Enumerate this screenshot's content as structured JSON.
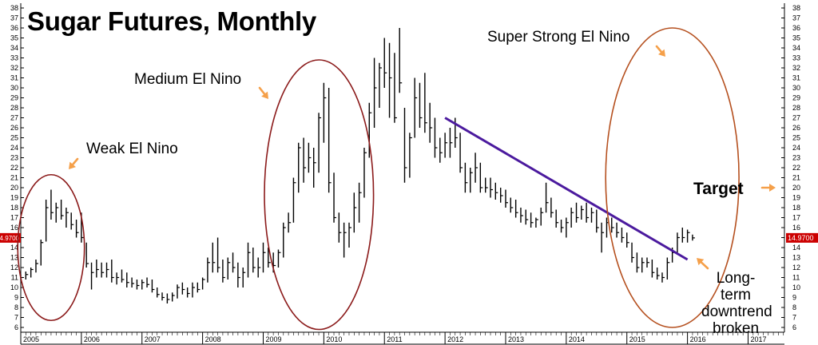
{
  "title": "Sugar Futures, Monthly",
  "annotations": {
    "weak": "Weak El Nino",
    "medium": "Medium El Nino",
    "super": "Super Strong El Nino",
    "target": "Target",
    "downtrend_line1": "Long-term",
    "downtrend_line2": "downtrend",
    "downtrend_line3": "broken"
  },
  "colors": {
    "bars": "#000000",
    "ellipse_weak_medium": "#8b1a1a",
    "ellipse_super": "#b5501f",
    "trendline": "#4b1a9e",
    "arrow": "#f5a04a",
    "last_price_tag": "#cc0000"
  },
  "chart_data": {
    "type": "ohlc",
    "title": "Sugar Futures, Monthly",
    "xlabel": "",
    "ylabel": "",
    "ylim": [
      6,
      38
    ],
    "y_ticks": [
      6,
      7,
      8,
      9,
      10,
      11,
      12,
      13,
      14,
      15,
      16,
      17,
      18,
      19,
      20,
      21,
      22,
      23,
      24,
      25,
      26,
      27,
      28,
      29,
      30,
      31,
      32,
      33,
      34,
      35,
      36,
      37,
      38
    ],
    "x_ticks": [
      "2005",
      "2006",
      "2007",
      "2008",
      "2009",
      "2010",
      "2011",
      "2012",
      "2013",
      "2014",
      "2015",
      "2016",
      "2017"
    ],
    "x_range": [
      2005.0,
      2017.6
    ],
    "last_price_label": "14.9700",
    "last_price": 14.97,
    "grid": false,
    "series": [
      {
        "t": 2005.0,
        "h": 11.3,
        "l": 10.7,
        "c": 11.0
      },
      {
        "t": 2005.083,
        "h": 11.6,
        "l": 10.8,
        "c": 11.3
      },
      {
        "t": 2005.167,
        "h": 12.0,
        "l": 11.0,
        "c": 11.8
      },
      {
        "t": 2005.25,
        "h": 12.8,
        "l": 11.5,
        "c": 12.4
      },
      {
        "t": 2005.333,
        "h": 14.8,
        "l": 12.2,
        "c": 14.5
      },
      {
        "t": 2005.417,
        "h": 18.8,
        "l": 14.6,
        "c": 18.0
      },
      {
        "t": 2005.5,
        "h": 19.8,
        "l": 16.8,
        "c": 17.5
      },
      {
        "t": 2005.583,
        "h": 18.5,
        "l": 16.5,
        "c": 18.0
      },
      {
        "t": 2005.667,
        "h": 18.8,
        "l": 16.8,
        "c": 17.2
      },
      {
        "t": 2005.75,
        "h": 18.0,
        "l": 16.0,
        "c": 17.5
      },
      {
        "t": 2005.833,
        "h": 17.5,
        "l": 15.8,
        "c": 16.3
      },
      {
        "t": 2005.917,
        "h": 16.8,
        "l": 15.0,
        "c": 15.5
      },
      {
        "t": 2006.0,
        "h": 17.5,
        "l": 14.5,
        "c": 15.0
      },
      {
        "t": 2006.083,
        "h": 14.5,
        "l": 12.0,
        "c": 12.4
      },
      {
        "t": 2006.167,
        "h": 12.5,
        "l": 9.8,
        "c": 11.5
      },
      {
        "t": 2006.25,
        "h": 12.8,
        "l": 11.0,
        "c": 11.8
      },
      {
        "t": 2006.333,
        "h": 12.5,
        "l": 11.0,
        "c": 11.5
      },
      {
        "t": 2006.417,
        "h": 12.5,
        "l": 11.0,
        "c": 11.8
      },
      {
        "t": 2006.5,
        "h": 12.8,
        "l": 10.5,
        "c": 11.0
      },
      {
        "t": 2006.583,
        "h": 11.5,
        "l": 10.3,
        "c": 11.0
      },
      {
        "t": 2006.667,
        "h": 11.8,
        "l": 10.5,
        "c": 10.8
      },
      {
        "t": 2006.75,
        "h": 11.5,
        "l": 10.0,
        "c": 10.5
      },
      {
        "t": 2006.833,
        "h": 11.0,
        "l": 10.0,
        "c": 10.4
      },
      {
        "t": 2006.917,
        "h": 10.8,
        "l": 9.8,
        "c": 10.2
      },
      {
        "t": 2007.0,
        "h": 10.8,
        "l": 9.8,
        "c": 10.5
      },
      {
        "t": 2007.083,
        "h": 11.0,
        "l": 10.0,
        "c": 10.3
      },
      {
        "t": 2007.167,
        "h": 10.8,
        "l": 9.5,
        "c": 9.8
      },
      {
        "t": 2007.25,
        "h": 10.0,
        "l": 9.0,
        "c": 9.3
      },
      {
        "t": 2007.333,
        "h": 9.5,
        "l": 8.7,
        "c": 9.0
      },
      {
        "t": 2007.417,
        "h": 9.4,
        "l": 8.4,
        "c": 8.8
      },
      {
        "t": 2007.5,
        "h": 9.5,
        "l": 8.6,
        "c": 9.2
      },
      {
        "t": 2007.583,
        "h": 10.3,
        "l": 8.9,
        "c": 10.0
      },
      {
        "t": 2007.667,
        "h": 10.5,
        "l": 9.3,
        "c": 9.8
      },
      {
        "t": 2007.75,
        "h": 10.0,
        "l": 9.0,
        "c": 9.4
      },
      {
        "t": 2007.833,
        "h": 10.5,
        "l": 9.0,
        "c": 10.0
      },
      {
        "t": 2007.917,
        "h": 10.5,
        "l": 9.5,
        "c": 9.8
      },
      {
        "t": 2008.0,
        "h": 11.0,
        "l": 9.8,
        "c": 10.8
      },
      {
        "t": 2008.083,
        "h": 13.0,
        "l": 10.5,
        "c": 12.5
      },
      {
        "t": 2008.167,
        "h": 14.5,
        "l": 11.5,
        "c": 12.5
      },
      {
        "t": 2008.25,
        "h": 15.0,
        "l": 11.5,
        "c": 12.0
      },
      {
        "t": 2008.333,
        "h": 12.8,
        "l": 10.5,
        "c": 11.0
      },
      {
        "t": 2008.417,
        "h": 13.0,
        "l": 10.8,
        "c": 12.5
      },
      {
        "t": 2008.5,
        "h": 13.5,
        "l": 11.5,
        "c": 12.0
      },
      {
        "t": 2008.583,
        "h": 12.5,
        "l": 10.0,
        "c": 11.0
      },
      {
        "t": 2008.667,
        "h": 12.0,
        "l": 10.0,
        "c": 11.5
      },
      {
        "t": 2008.75,
        "h": 14.5,
        "l": 11.0,
        "c": 13.5
      },
      {
        "t": 2008.833,
        "h": 14.0,
        "l": 11.5,
        "c": 12.0
      },
      {
        "t": 2008.917,
        "h": 13.0,
        "l": 11.0,
        "c": 12.0
      },
      {
        "t": 2009.0,
        "h": 14.5,
        "l": 11.5,
        "c": 13.5
      },
      {
        "t": 2009.083,
        "h": 14.0,
        "l": 12.0,
        "c": 12.5
      },
      {
        "t": 2009.167,
        "h": 13.5,
        "l": 11.5,
        "c": 12.2
      },
      {
        "t": 2009.25,
        "h": 13.8,
        "l": 12.0,
        "c": 13.5
      },
      {
        "t": 2009.333,
        "h": 16.5,
        "l": 13.0,
        "c": 16.0
      },
      {
        "t": 2009.417,
        "h": 17.5,
        "l": 15.5,
        "c": 16.5
      },
      {
        "t": 2009.5,
        "h": 21.0,
        "l": 16.5,
        "c": 20.5
      },
      {
        "t": 2009.583,
        "h": 24.5,
        "l": 19.5,
        "c": 24.0
      },
      {
        "t": 2009.667,
        "h": 25.0,
        "l": 20.5,
        "c": 22.0
      },
      {
        "t": 2009.75,
        "h": 24.5,
        "l": 21.5,
        "c": 23.0
      },
      {
        "t": 2009.833,
        "h": 24.0,
        "l": 20.0,
        "c": 22.5
      },
      {
        "t": 2009.917,
        "h": 27.5,
        "l": 21.5,
        "c": 27.0
      },
      {
        "t": 2010.0,
        "h": 30.5,
        "l": 24.5,
        "c": 29.0
      },
      {
        "t": 2010.083,
        "h": 30.0,
        "l": 19.5,
        "c": 20.5
      },
      {
        "t": 2010.167,
        "h": 21.5,
        "l": 16.5,
        "c": 17.0
      },
      {
        "t": 2010.25,
        "h": 17.5,
        "l": 14.5,
        "c": 15.5
      },
      {
        "t": 2010.333,
        "h": 16.5,
        "l": 13.0,
        "c": 15.5
      },
      {
        "t": 2010.417,
        "h": 16.5,
        "l": 14.0,
        "c": 16.0
      },
      {
        "t": 2010.5,
        "h": 19.5,
        "l": 15.5,
        "c": 18.0
      },
      {
        "t": 2010.583,
        "h": 20.5,
        "l": 16.5,
        "c": 19.5
      },
      {
        "t": 2010.667,
        "h": 24.0,
        "l": 19.0,
        "c": 23.5
      },
      {
        "t": 2010.75,
        "h": 28.5,
        "l": 23.0,
        "c": 27.5
      },
      {
        "t": 2010.833,
        "h": 33.0,
        "l": 26.0,
        "c": 30.0
      },
      {
        "t": 2010.917,
        "h": 32.5,
        "l": 28.0,
        "c": 32.0
      },
      {
        "t": 2011.0,
        "h": 35.0,
        "l": 30.0,
        "c": 31.5
      },
      {
        "t": 2011.083,
        "h": 34.5,
        "l": 27.0,
        "c": 31.0
      },
      {
        "t": 2011.167,
        "h": 33.5,
        "l": 26.5,
        "c": 27.0
      },
      {
        "t": 2011.25,
        "h": 36.0,
        "l": 29.5,
        "c": 30.5
      },
      {
        "t": 2011.333,
        "h": 28.0,
        "l": 20.5,
        "c": 22.0
      },
      {
        "t": 2011.417,
        "h": 25.5,
        "l": 21.0,
        "c": 25.0
      },
      {
        "t": 2011.5,
        "h": 31.0,
        "l": 25.0,
        "c": 29.0
      },
      {
        "t": 2011.583,
        "h": 30.5,
        "l": 26.0,
        "c": 27.0
      },
      {
        "t": 2011.667,
        "h": 31.5,
        "l": 25.5,
        "c": 26.5
      },
      {
        "t": 2011.75,
        "h": 28.5,
        "l": 24.5,
        "c": 26.0
      },
      {
        "t": 2011.833,
        "h": 27.0,
        "l": 23.0,
        "c": 24.0
      },
      {
        "t": 2011.917,
        "h": 25.0,
        "l": 22.5,
        "c": 23.5
      },
      {
        "t": 2012.0,
        "h": 25.5,
        "l": 23.0,
        "c": 24.5
      },
      {
        "t": 2012.083,
        "h": 26.0,
        "l": 23.0,
        "c": 24.5
      },
      {
        "t": 2012.167,
        "h": 27.0,
        "l": 24.0,
        "c": 25.0
      },
      {
        "t": 2012.25,
        "h": 25.5,
        "l": 21.5,
        "c": 22.0
      },
      {
        "t": 2012.333,
        "h": 22.5,
        "l": 19.5,
        "c": 20.5
      },
      {
        "t": 2012.417,
        "h": 22.0,
        "l": 19.5,
        "c": 21.5
      },
      {
        "t": 2012.5,
        "h": 23.5,
        "l": 20.5,
        "c": 22.0
      },
      {
        "t": 2012.583,
        "h": 22.5,
        "l": 19.5,
        "c": 20.0
      },
      {
        "t": 2012.667,
        "h": 21.0,
        "l": 19.5,
        "c": 20.0
      },
      {
        "t": 2012.75,
        "h": 21.0,
        "l": 19.0,
        "c": 19.8
      },
      {
        "t": 2012.833,
        "h": 20.5,
        "l": 18.8,
        "c": 19.5
      },
      {
        "t": 2012.917,
        "h": 20.0,
        "l": 18.5,
        "c": 19.2
      },
      {
        "t": 2013.0,
        "h": 19.8,
        "l": 18.0,
        "c": 18.5
      },
      {
        "t": 2013.083,
        "h": 19.0,
        "l": 17.5,
        "c": 18.0
      },
      {
        "t": 2013.167,
        "h": 18.8,
        "l": 17.0,
        "c": 17.5
      },
      {
        "t": 2013.25,
        "h": 18.0,
        "l": 16.5,
        "c": 17.2
      },
      {
        "t": 2013.333,
        "h": 17.8,
        "l": 16.3,
        "c": 16.8
      },
      {
        "t": 2013.417,
        "h": 17.5,
        "l": 16.0,
        "c": 16.5
      },
      {
        "t": 2013.5,
        "h": 17.0,
        "l": 16.0,
        "c": 16.8
      },
      {
        "t": 2013.583,
        "h": 18.0,
        "l": 16.2,
        "c": 17.5
      },
      {
        "t": 2013.667,
        "h": 20.5,
        "l": 17.5,
        "c": 18.5
      },
      {
        "t": 2013.75,
        "h": 19.0,
        "l": 17.0,
        "c": 17.5
      },
      {
        "t": 2013.833,
        "h": 17.8,
        "l": 16.0,
        "c": 16.5
      },
      {
        "t": 2013.917,
        "h": 16.8,
        "l": 15.5,
        "c": 16.0
      },
      {
        "t": 2014.0,
        "h": 17.0,
        "l": 15.0,
        "c": 16.5
      },
      {
        "t": 2014.083,
        "h": 18.0,
        "l": 16.0,
        "c": 17.5
      },
      {
        "t": 2014.167,
        "h": 18.5,
        "l": 16.5,
        "c": 17.0
      },
      {
        "t": 2014.25,
        "h": 18.2,
        "l": 16.8,
        "c": 17.8
      },
      {
        "t": 2014.333,
        "h": 18.5,
        "l": 16.5,
        "c": 17.0
      },
      {
        "t": 2014.417,
        "h": 18.0,
        "l": 16.5,
        "c": 17.5
      },
      {
        "t": 2014.5,
        "h": 17.8,
        "l": 15.5,
        "c": 16.0
      },
      {
        "t": 2014.583,
        "h": 16.5,
        "l": 13.5,
        "c": 15.5
      },
      {
        "t": 2014.667,
        "h": 17.0,
        "l": 15.0,
        "c": 16.5
      },
      {
        "t": 2014.75,
        "h": 17.0,
        "l": 15.5,
        "c": 16.0
      },
      {
        "t": 2014.833,
        "h": 16.5,
        "l": 15.0,
        "c": 15.5
      },
      {
        "t": 2014.917,
        "h": 16.0,
        "l": 14.5,
        "c": 15.0
      },
      {
        "t": 2015.0,
        "h": 15.5,
        "l": 14.0,
        "c": 14.5
      },
      {
        "t": 2015.083,
        "h": 14.5,
        "l": 12.5,
        "c": 13.0
      },
      {
        "t": 2015.167,
        "h": 13.5,
        "l": 11.5,
        "c": 12.0
      },
      {
        "t": 2015.25,
        "h": 13.0,
        "l": 11.5,
        "c": 12.5
      },
      {
        "t": 2015.333,
        "h": 13.0,
        "l": 12.0,
        "c": 12.5
      },
      {
        "t": 2015.417,
        "h": 12.8,
        "l": 11.0,
        "c": 11.5
      },
      {
        "t": 2015.5,
        "h": 12.0,
        "l": 10.8,
        "c": 11.2
      },
      {
        "t": 2015.583,
        "h": 11.5,
        "l": 10.5,
        "c": 11.0
      },
      {
        "t": 2015.667,
        "h": 13.0,
        "l": 10.8,
        "c": 12.5
      },
      {
        "t": 2015.75,
        "h": 14.0,
        "l": 12.5,
        "c": 13.5
      },
      {
        "t": 2015.833,
        "h": 15.5,
        "l": 13.5,
        "c": 15.0
      },
      {
        "t": 2015.917,
        "h": 16.0,
        "l": 14.5,
        "c": 15.0
      },
      {
        "t": 2016.0,
        "h": 15.8,
        "l": 14.5,
        "c": 15.5
      },
      {
        "t": 2016.083,
        "h": 15.3,
        "l": 14.7,
        "c": 14.97
      }
    ],
    "trendline": {
      "start": [
        2012.0,
        27.0
      ],
      "end": [
        2016.0,
        12.8
      ]
    },
    "ellipses": [
      {
        "name": "Weak El Nino",
        "cx": 2005.5,
        "cy": 14.0,
        "rx": 0.55,
        "ry": 7.3
      },
      {
        "name": "Medium El Nino",
        "cx": 2009.92,
        "cy": 19.3,
        "rx": 0.9,
        "ry": 13.5
      },
      {
        "name": "Super Strong El Nino",
        "cx": 2015.75,
        "cy": 21.0,
        "rx": 1.1,
        "ry": 15.0
      }
    ]
  }
}
